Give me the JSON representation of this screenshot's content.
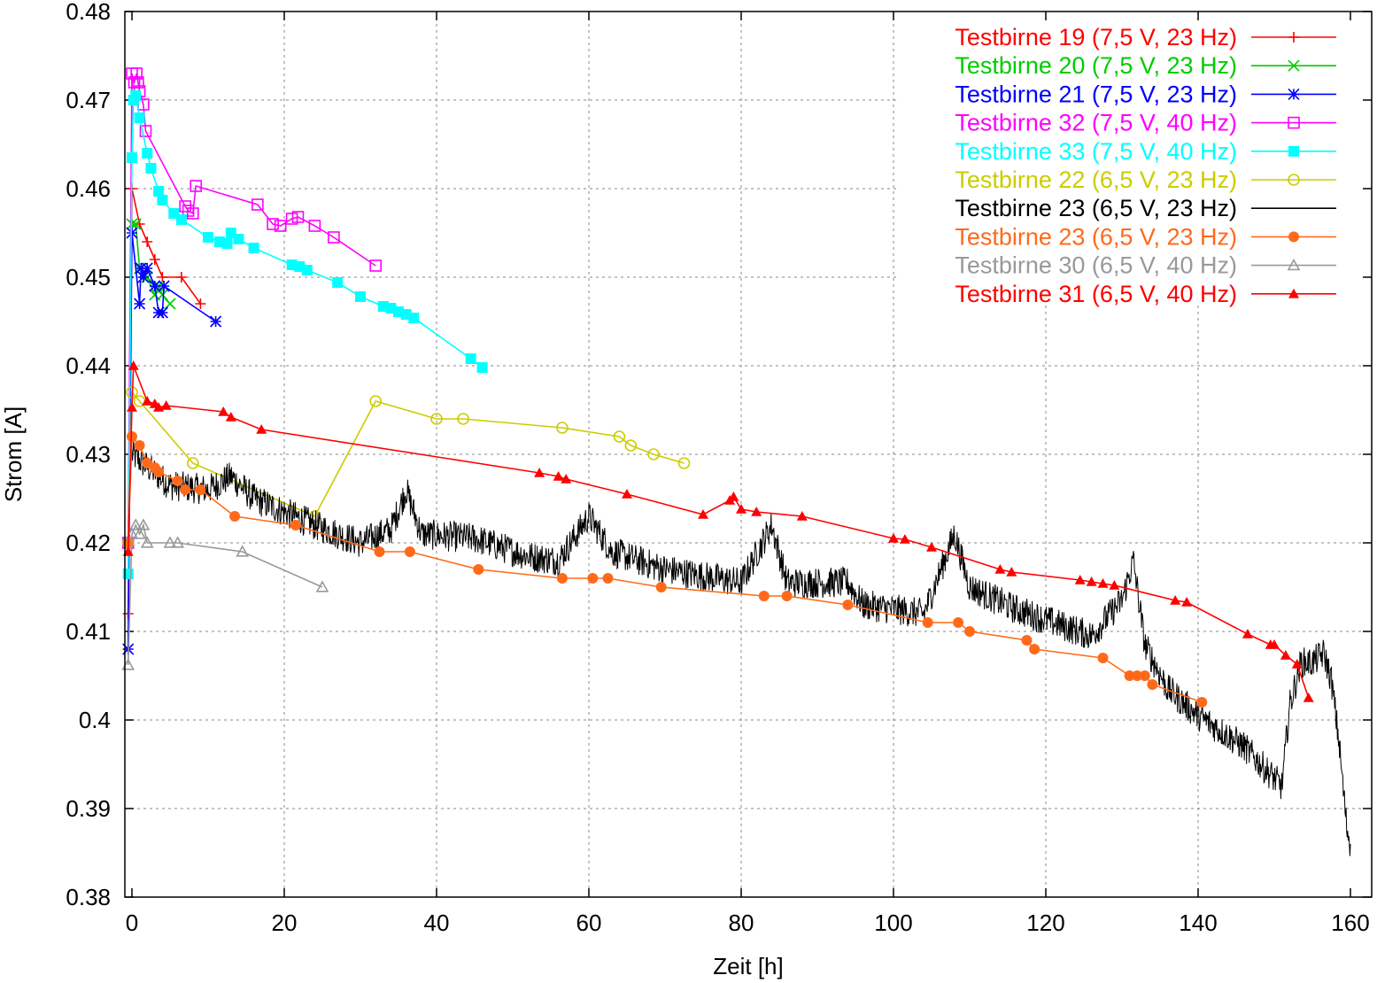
{
  "chart_data": {
    "type": "line",
    "xlabel": "Zeit [h]",
    "ylabel": "Strom [A]",
    "xlim": [
      -1,
      162
    ],
    "ylim": [
      0.38,
      0.48
    ],
    "xticks": [
      0,
      20,
      40,
      60,
      80,
      100,
      120,
      140,
      160
    ],
    "yticks": [
      0.38,
      0.39,
      0.4,
      0.41,
      0.42,
      0.43,
      0.44,
      0.45,
      0.46,
      0.47,
      0.48
    ],
    "xtick_labels": [
      "0",
      "20",
      "40",
      "60",
      "80",
      "100",
      "120",
      "140",
      "160"
    ],
    "ytick_labels": [
      "0.38",
      "0.39",
      "0.4",
      "0.41",
      "0.42",
      "0.43",
      "0.44",
      "0.45",
      "0.46",
      "0.47",
      "0.48"
    ],
    "grid": true,
    "legend_position": "top-right",
    "series": [
      {
        "name": "Testbirne 19 (7,5 V, 23 Hz)",
        "color": "#ff0000",
        "marker": "plus",
        "points": [
          [
            -0.5,
            0.412
          ],
          [
            0.0,
            0.46
          ],
          [
            1.0,
            0.456
          ],
          [
            2.0,
            0.454
          ],
          [
            3.0,
            0.452
          ],
          [
            4.0,
            0.45
          ],
          [
            6.5,
            0.45
          ],
          [
            9.0,
            0.447
          ]
        ]
      },
      {
        "name": "Testbirne 20 (7,5 V, 23 Hz)",
        "color": "#00cc00",
        "marker": "cross",
        "points": [
          [
            -0.5,
            0.42
          ],
          [
            0.0,
            0.456
          ],
          [
            0.5,
            0.456
          ],
          [
            1.0,
            0.451
          ],
          [
            2.0,
            0.45
          ],
          [
            3.0,
            0.448
          ],
          [
            3.5,
            0.449
          ],
          [
            4.0,
            0.448
          ],
          [
            5.0,
            0.447
          ]
        ]
      },
      {
        "name": "Testbirne 21 (7,5 V, 23 Hz)",
        "color": "#0000ff",
        "marker": "star",
        "points": [
          [
            -0.5,
            0.408
          ],
          [
            0.0,
            0.455
          ],
          [
            1.0,
            0.447
          ],
          [
            1.2,
            0.451
          ],
          [
            1.5,
            0.45
          ],
          [
            2.0,
            0.451
          ],
          [
            3.0,
            0.449
          ],
          [
            3.5,
            0.446
          ],
          [
            4.0,
            0.446
          ],
          [
            4.2,
            0.449
          ],
          [
            11.0,
            0.445
          ]
        ]
      },
      {
        "name": "Testbirne 32 (7,5 V, 40 Hz)",
        "color": "#ff00ff",
        "marker": "square-open",
        "points": [
          [
            -0.5,
            0.42
          ],
          [
            0.0,
            0.473
          ],
          [
            0.3,
            0.472
          ],
          [
            0.6,
            0.473
          ],
          [
            0.8,
            0.472
          ],
          [
            1.0,
            0.471
          ],
          [
            1.5,
            0.4695
          ],
          [
            1.8,
            0.4665
          ],
          [
            7.0,
            0.458
          ],
          [
            7.4,
            0.4575
          ],
          [
            8.0,
            0.4572
          ],
          [
            8.4,
            0.4603
          ],
          [
            16.5,
            0.4582
          ],
          [
            18.5,
            0.456
          ],
          [
            19.5,
            0.4558
          ],
          [
            21.0,
            0.4566
          ],
          [
            21.8,
            0.4568
          ],
          [
            24.0,
            0.4558
          ],
          [
            26.5,
            0.4545
          ],
          [
            32.0,
            0.4513
          ]
        ]
      },
      {
        "name": "Testbirne 33 (7,5 V, 40 Hz)",
        "color": "#00ffff",
        "marker": "square-filled",
        "points": [
          [
            -0.5,
            0.4165
          ],
          [
            0.0,
            0.4635
          ],
          [
            0.2,
            0.47
          ],
          [
            0.5,
            0.4705
          ],
          [
            1.0,
            0.468
          ],
          [
            2.0,
            0.464
          ],
          [
            2.5,
            0.4623
          ],
          [
            3.5,
            0.4597
          ],
          [
            4.0,
            0.4587
          ],
          [
            5.5,
            0.4572
          ],
          [
            6.5,
            0.4565
          ],
          [
            10.0,
            0.4545
          ],
          [
            11.5,
            0.454
          ],
          [
            12.5,
            0.4538
          ],
          [
            13.0,
            0.455
          ],
          [
            14.0,
            0.4543
          ],
          [
            16.0,
            0.4533
          ],
          [
            21.0,
            0.4514
          ],
          [
            22.0,
            0.4512
          ],
          [
            23.0,
            0.4508
          ],
          [
            27.0,
            0.4494
          ],
          [
            30.0,
            0.4478
          ],
          [
            33.0,
            0.4467
          ],
          [
            34.0,
            0.4465
          ],
          [
            35.0,
            0.4461
          ],
          [
            36.0,
            0.4458
          ],
          [
            37.0,
            0.4454
          ],
          [
            44.5,
            0.4408
          ],
          [
            46.0,
            0.4398
          ]
        ]
      },
      {
        "name": "Testbirne 22 (6,5 V, 23 Hz)",
        "color": "#cccc00",
        "marker": "circle-open",
        "points": [
          [
            -0.5,
            0.42
          ],
          [
            0.0,
            0.437
          ],
          [
            1.0,
            0.436
          ],
          [
            8.0,
            0.429
          ],
          [
            24.0,
            0.423
          ],
          [
            32.0,
            0.436
          ],
          [
            40.0,
            0.434
          ],
          [
            43.5,
            0.434
          ],
          [
            56.5,
            0.433
          ],
          [
            64.0,
            0.432
          ],
          [
            65.5,
            0.431
          ],
          [
            68.5,
            0.43
          ],
          [
            72.5,
            0.429
          ]
        ]
      },
      {
        "name": "Testbirne 23 (6,5 V, 23 Hz)",
        "color": "#000000",
        "marker": "none",
        "points": [
          [
            0.0,
            0.43
          ],
          [
            5.0,
            0.4265
          ],
          [
            10.0,
            0.426
          ],
          [
            13.0,
            0.4275
          ],
          [
            16.0,
            0.425
          ],
          [
            20.0,
            0.4235
          ],
          [
            24.0,
            0.422
          ],
          [
            30.0,
            0.42
          ],
          [
            34.0,
            0.4215
          ],
          [
            36.0,
            0.426
          ],
          [
            38.0,
            0.421
          ],
          [
            45.0,
            0.4205
          ],
          [
            52.0,
            0.4185
          ],
          [
            56.0,
            0.418
          ],
          [
            60.0,
            0.423
          ],
          [
            63.0,
            0.419
          ],
          [
            70.0,
            0.417
          ],
          [
            80.0,
            0.4155
          ],
          [
            84.0,
            0.422
          ],
          [
            86.0,
            0.4155
          ],
          [
            94.0,
            0.4155
          ],
          [
            96.0,
            0.413
          ],
          [
            104.0,
            0.412
          ],
          [
            108.0,
            0.421
          ],
          [
            110.0,
            0.415
          ],
          [
            116.0,
            0.4125
          ],
          [
            126.0,
            0.4095
          ],
          [
            130.0,
            0.4135
          ],
          [
            131.5,
            0.418
          ],
          [
            133.0,
            0.4085
          ],
          [
            136.0,
            0.4035
          ],
          [
            140.0,
            0.4005
          ],
          [
            146.0,
            0.397
          ],
          [
            151.0,
            0.3925
          ],
          [
            152.0,
            0.4015
          ],
          [
            153.5,
            0.4065
          ],
          [
            155.0,
            0.4065
          ],
          [
            156.5,
            0.4075
          ],
          [
            157.5,
            0.4045
          ],
          [
            158.5,
            0.3975
          ],
          [
            159.5,
            0.388
          ],
          [
            160.0,
            0.386
          ]
        ],
        "noise": 0.0035
      },
      {
        "name": "Testbirne 23 (6,5 V, 23 Hz)",
        "color": "#ff6a1a",
        "marker": "circle-filled",
        "points": [
          [
            -0.5,
            0.42
          ],
          [
            0.0,
            0.432
          ],
          [
            1.0,
            0.431
          ],
          [
            2.0,
            0.429
          ],
          [
            3.0,
            0.4285
          ],
          [
            3.5,
            0.428
          ],
          [
            6.0,
            0.427
          ],
          [
            7.0,
            0.426
          ],
          [
            9.0,
            0.426
          ],
          [
            13.5,
            0.423
          ],
          [
            21.5,
            0.422
          ],
          [
            32.5,
            0.419
          ],
          [
            36.5,
            0.419
          ],
          [
            45.5,
            0.417
          ],
          [
            56.5,
            0.416
          ],
          [
            60.5,
            0.416
          ],
          [
            62.5,
            0.416
          ],
          [
            69.5,
            0.415
          ],
          [
            83.0,
            0.414
          ],
          [
            86.0,
            0.414
          ],
          [
            94.0,
            0.413
          ],
          [
            104.5,
            0.411
          ],
          [
            108.5,
            0.411
          ],
          [
            110.0,
            0.41
          ],
          [
            117.5,
            0.409
          ],
          [
            118.5,
            0.408
          ],
          [
            127.5,
            0.407
          ],
          [
            131.0,
            0.405
          ],
          [
            132.0,
            0.405
          ],
          [
            133.0,
            0.405
          ],
          [
            134.0,
            0.404
          ],
          [
            140.5,
            0.402
          ]
        ]
      },
      {
        "name": "Testbirne 30 (6,5 V, 40 Hz)",
        "color": "#999999",
        "marker": "triangle-open",
        "points": [
          [
            -0.5,
            0.4062
          ],
          [
            0.0,
            0.421
          ],
          [
            0.5,
            0.422
          ],
          [
            1.0,
            0.421
          ],
          [
            1.5,
            0.422
          ],
          [
            2.0,
            0.42
          ],
          [
            5.0,
            0.42
          ],
          [
            6.0,
            0.42
          ],
          [
            14.5,
            0.419
          ],
          [
            25.0,
            0.415
          ]
        ]
      },
      {
        "name": "Testbirne 31 (6,5 V, 40 Hz)",
        "color": "#ff0000",
        "marker": "triangle-filled",
        "points": [
          [
            -0.5,
            0.419
          ],
          [
            0.0,
            0.4353
          ],
          [
            0.2,
            0.44
          ],
          [
            2.0,
            0.436
          ],
          [
            3.0,
            0.4357
          ],
          [
            3.5,
            0.4353
          ],
          [
            4.5,
            0.4355
          ],
          [
            12.0,
            0.4348
          ],
          [
            13.0,
            0.4342
          ],
          [
            17.0,
            0.4328
          ],
          [
            53.5,
            0.4279
          ],
          [
            56.0,
            0.4275
          ],
          [
            57.0,
            0.4272
          ],
          [
            65.0,
            0.4255
          ],
          [
            75.0,
            0.4232
          ],
          [
            78.5,
            0.4248
          ],
          [
            79.0,
            0.4252
          ],
          [
            80.0,
            0.4238
          ],
          [
            82.0,
            0.4235
          ],
          [
            88.0,
            0.423
          ],
          [
            100.0,
            0.4205
          ],
          [
            101.5,
            0.4204
          ],
          [
            105.0,
            0.4195
          ],
          [
            114.0,
            0.417
          ],
          [
            115.5,
            0.4167
          ],
          [
            124.5,
            0.4158
          ],
          [
            126.0,
            0.4156
          ],
          [
            127.5,
            0.4154
          ],
          [
            129.0,
            0.4152
          ],
          [
            137.0,
            0.4135
          ],
          [
            138.5,
            0.4133
          ],
          [
            146.5,
            0.4097
          ],
          [
            149.5,
            0.4085
          ],
          [
            150.0,
            0.4085
          ],
          [
            151.5,
            0.4073
          ],
          [
            153.0,
            0.4063
          ],
          [
            154.5,
            0.4025
          ]
        ]
      }
    ]
  }
}
